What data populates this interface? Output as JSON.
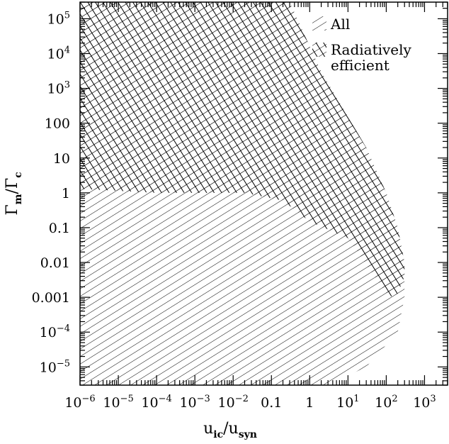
{
  "chart_data": {
    "type": "area",
    "xlabel": {
      "base": "u",
      "num_sub": "ic",
      "den_sub": "syn",
      "sep": "/"
    },
    "ylabel": {
      "base": "Γ",
      "num_sub": "m",
      "den_sub": "c",
      "sep": "/"
    },
    "x_scale": "log",
    "y_scale": "log",
    "xlim": [
      1e-06,
      4000
    ],
    "ylim": [
      3e-06,
      300000.0
    ],
    "x_ticks": [
      {
        "value": 1e-06,
        "mantissa": "10",
        "exp": "−6"
      },
      {
        "value": 1e-05,
        "mantissa": "10",
        "exp": "−5"
      },
      {
        "value": 0.0001,
        "mantissa": "10",
        "exp": "−4"
      },
      {
        "value": 0.001,
        "mantissa": "10",
        "exp": "−3"
      },
      {
        "value": 0.01,
        "mantissa": "10",
        "exp": "−2"
      },
      {
        "value": 0.1,
        "mantissa": "0.1",
        "exp": ""
      },
      {
        "value": 1,
        "mantissa": "1",
        "exp": ""
      },
      {
        "value": 10,
        "mantissa": "10",
        "exp": "1"
      },
      {
        "value": 100,
        "mantissa": "10",
        "exp": "2"
      },
      {
        "value": 1000,
        "mantissa": "10",
        "exp": "3"
      }
    ],
    "y_ticks": [
      {
        "value": 1e-05,
        "mantissa": "10",
        "exp": "−5"
      },
      {
        "value": 0.0001,
        "mantissa": "10",
        "exp": "−4"
      },
      {
        "value": 0.001,
        "mantissa": "0.001",
        "exp": ""
      },
      {
        "value": 0.01,
        "mantissa": "0.01",
        "exp": ""
      },
      {
        "value": 0.1,
        "mantissa": "0.1",
        "exp": ""
      },
      {
        "value": 1,
        "mantissa": "1",
        "exp": ""
      },
      {
        "value": 10,
        "mantissa": "10",
        "exp": ""
      },
      {
        "value": 100,
        "mantissa": "100",
        "exp": ""
      },
      {
        "value": 1000,
        "mantissa": "10",
        "exp": "3"
      },
      {
        "value": 10000,
        "mantissa": "10",
        "exp": "4"
      },
      {
        "value": 100000,
        "mantissa": "10",
        "exp": "5"
      }
    ],
    "series": [
      {
        "name": "All",
        "hatch": "diagonal",
        "boundary": [
          [
            1e-06,
            300000.0
          ],
          [
            0.3,
            300000.0
          ],
          [
            2,
            3000
          ],
          [
            30,
            20
          ],
          [
            100,
            1
          ],
          [
            200,
            0.1
          ],
          [
            300,
            0.01
          ],
          [
            300,
            0.001
          ],
          [
            200,
            0.0001
          ],
          [
            30,
            1e-05
          ],
          [
            3,
            3e-06
          ],
          [
            1e-06,
            3e-06
          ]
        ]
      },
      {
        "name": "Radiatively efficient",
        "hatch": "crosshatch",
        "boundary": [
          [
            1e-06,
            300000.0
          ],
          [
            0.3,
            300000.0
          ],
          [
            2,
            3000
          ],
          [
            30,
            20
          ],
          [
            100,
            1
          ],
          [
            200,
            0.1
          ],
          [
            300,
            0.01
          ],
          [
            300,
            0.004
          ],
          [
            200,
            0.0013
          ],
          [
            120,
            0.001
          ],
          [
            50,
            0.004
          ],
          [
            10,
            0.05
          ],
          [
            1,
            0.15
          ],
          [
            0.2,
            0.6
          ],
          [
            0.02,
            1
          ],
          [
            0.0001,
            1
          ],
          [
            1e-06,
            1.3
          ]
        ]
      }
    ],
    "legend": {
      "position": "top-right",
      "entries": [
        "All",
        "Radiatively",
        "efficient"
      ]
    },
    "grid": false
  }
}
